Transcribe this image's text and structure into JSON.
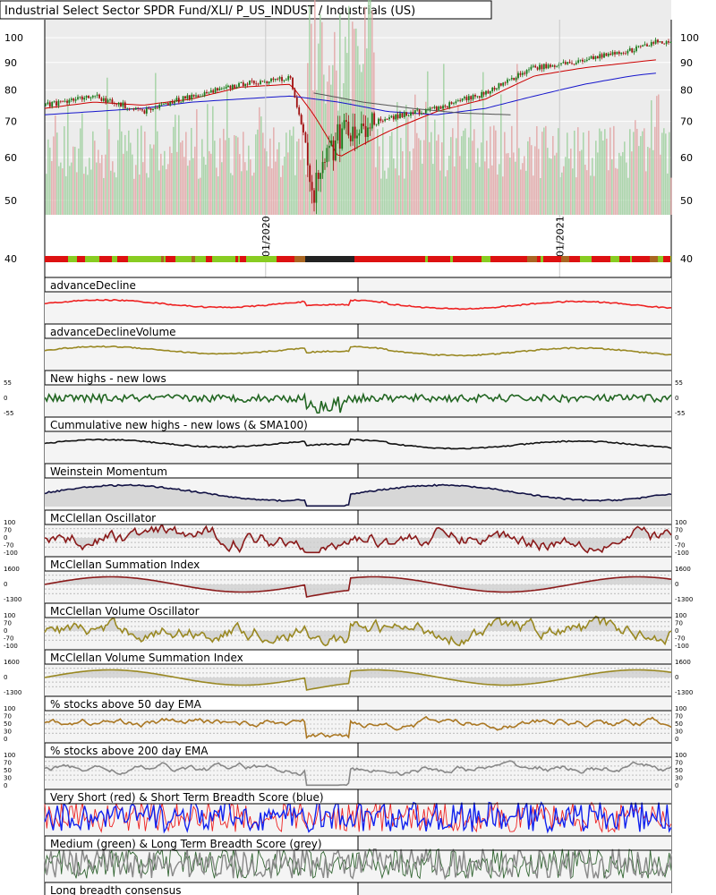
{
  "chart_data": {
    "type": "line",
    "title": "Industrial Select Sector SPDR Fund/XLI/ P_US_INDUST / Industrials (US)",
    "price_panel": {
      "y_axis": {
        "scale": "log",
        "ylim": [
          47,
          108
        ],
        "ticks": [
          50,
          60,
          70,
          80,
          90,
          100
        ]
      },
      "x_tick_labels": [
        "01/2020",
        "01/2021"
      ],
      "series": [
        {
          "kind": "candlestick",
          "color_up": "#1a7a1a",
          "color_down": "#a01010",
          "x": [
            "2019-04",
            "2019-06",
            "2019-08",
            "2019-10",
            "2019-12",
            "2020-02",
            "2020-03",
            "2020-04",
            "2020-06",
            "2020-08",
            "2020-10",
            "2020-12",
            "2021-02",
            "2021-04",
            "2021-05"
          ],
          "values": [
            75,
            78,
            73,
            78,
            82,
            84,
            52,
            66,
            71,
            74,
            79,
            88,
            91,
            95,
            98
          ]
        },
        {
          "kind": "ma",
          "color": "#cc0000",
          "x": [
            "2019-04",
            "2019-06",
            "2019-08",
            "2019-10",
            "2019-12",
            "2020-02",
            "2020-03",
            "2020-04",
            "2020-06",
            "2020-08",
            "2020-10",
            "2020-12",
            "2021-02",
            "2021-04",
            "2021-05"
          ],
          "values": [
            74,
            76,
            75,
            77,
            81,
            82,
            72,
            60,
            67,
            73,
            77,
            85,
            88,
            90,
            91
          ]
        },
        {
          "kind": "ma",
          "color": "#1515cc",
          "x": [
            "2019-04",
            "2019-06",
            "2019-08",
            "2019-10",
            "2019-12",
            "2020-02",
            "2020-04",
            "2020-06",
            "2020-08",
            "2020-10",
            "2020-12",
            "2021-02",
            "2021-04",
            "2021-05"
          ],
          "values": [
            72,
            73,
            74,
            76,
            77,
            78,
            76,
            73,
            72,
            74,
            78,
            82,
            85,
            86
          ]
        },
        {
          "kind": "ma",
          "color": "#555555",
          "x": [
            "2020-03",
            "2020-05",
            "2020-07",
            "2020-09",
            "2020-11"
          ],
          "values": [
            79,
            76,
            74,
            72.5,
            72
          ]
        }
      ]
    },
    "strip_top": {
      "label": "40"
    },
    "panels": [
      {
        "title": "advanceDecline",
        "color": "#ee2222",
        "style": "line"
      },
      {
        "title": "advanceDeclineVolume",
        "color": "#998822",
        "style": "line"
      },
      {
        "title": "New highs - new lows",
        "color": "#226622",
        "style": "spiky",
        "left_ticks": [
          "55",
          "0",
          "-55"
        ],
        "right_ticks": [
          "55",
          "0",
          "-55"
        ]
      },
      {
        "title": "Cummulative new highs - new lows (& SMA100)",
        "color": "#111111",
        "style": "line"
      },
      {
        "title": "Weinstein Momentum",
        "color": "#111144",
        "style": "filled"
      },
      {
        "title": "McClellan Oscillator",
        "color": "#8a1a1a",
        "style": "osc",
        "left_ticks": [
          "100",
          "70",
          "0",
          "-70",
          "-100"
        ],
        "right_ticks": [
          "100",
          "70",
          "0",
          "-70",
          "-100"
        ]
      },
      {
        "title": "McClellan Summation Index",
        "color": "#8a1a1a",
        "style": "sum",
        "left_ticks": [
          "1600",
          "0",
          "-1300"
        ],
        "right_ticks": [
          "1600",
          "0",
          "-1300"
        ]
      },
      {
        "title": "McClellan Volume Oscillator",
        "color": "#998822",
        "style": "osc",
        "left_ticks": [
          "100",
          "70",
          "0",
          "-70",
          "-100"
        ],
        "right_ticks": [
          "100",
          "70",
          "0",
          "-70",
          "-100"
        ]
      },
      {
        "title": "McClellan Volume Summation Index",
        "color": "#998822",
        "style": "sum",
        "left_ticks": [
          "1600",
          "0",
          "-1300"
        ],
        "right_ticks": [
          "1600",
          "0",
          "-1300"
        ]
      },
      {
        "title": "% stocks above 50 day EMA",
        "color": "#aa7722",
        "style": "pct",
        "left_ticks": [
          "100",
          "70",
          "50",
          "30",
          "0"
        ],
        "right_ticks": [
          "100",
          "70",
          "50",
          "30",
          "0"
        ]
      },
      {
        "title": "% stocks above 200 day EMA",
        "color": "#888888",
        "style": "pct",
        "left_ticks": [
          "100",
          "70",
          "50",
          "30",
          "0"
        ],
        "right_ticks": [
          "100",
          "70",
          "50",
          "30",
          "0"
        ]
      },
      {
        "title": "Very Short (red) & Short Term Breadth Score (blue)",
        "color": "#ee2222",
        "color2": "#1122ee",
        "style": "score"
      },
      {
        "title": "Medium (green) & Long Term Breadth Score (grey)",
        "color": "#336633",
        "color2": "#888888",
        "style": "score2"
      },
      {
        "title": "Long breadth consensus",
        "style": "strip"
      }
    ]
  }
}
